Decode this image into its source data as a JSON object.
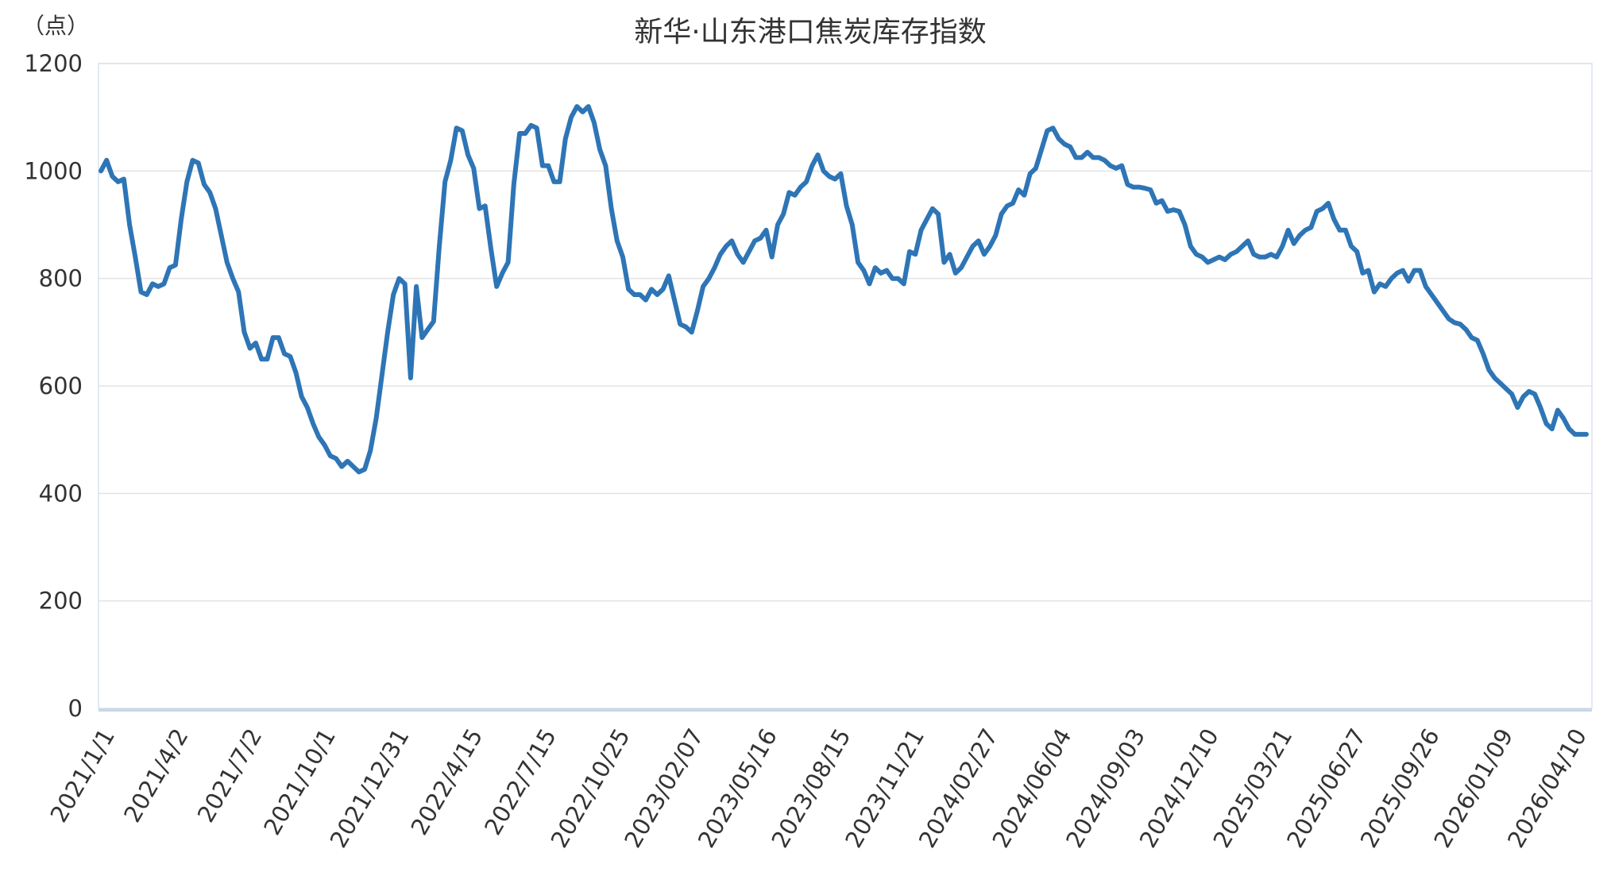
{
  "chart_data": {
    "type": "line",
    "title": "新华·山东港口焦炭库存指数",
    "unit_label": "（点）",
    "ylim": [
      0,
      1200
    ],
    "y_ticks": [
      0,
      200,
      400,
      600,
      800,
      1000,
      1200
    ],
    "x_tick_labels": [
      "2021/1/1",
      "2021/4/2",
      "2021/7/2",
      "2021/10/1",
      "2021/12/31",
      "2022/4/15",
      "2022/7/15",
      "2022/10/25",
      "2023/02/07",
      "2023/05/16",
      "2023/08/15",
      "2023/11/21",
      "2024/02/27",
      "2024/06/04",
      "2024/09/03",
      "2024/12/10",
      "2025/03/21",
      "2025/06/27",
      "2025/09/26",
      "2026/01/09",
      "2026/04/10"
    ],
    "grid": true,
    "legend": "none",
    "series": [
      {
        "color": "#2e75b6",
        "values": [
          1000,
          1020,
          990,
          980,
          985,
          900,
          840,
          775,
          770,
          790,
          785,
          790,
          820,
          825,
          910,
          980,
          1020,
          1015,
          975,
          960,
          930,
          880,
          830,
          800,
          775,
          700,
          670,
          680,
          650,
          650,
          690,
          690,
          660,
          655,
          625,
          580,
          560,
          530,
          505,
          490,
          470,
          465,
          450,
          460,
          450,
          440,
          445,
          480,
          540,
          620,
          700,
          770,
          800,
          790,
          615,
          785,
          690,
          705,
          720,
          860,
          980,
          1020,
          1080,
          1075,
          1030,
          1005,
          930,
          935,
          855,
          785,
          810,
          830,
          975,
          1070,
          1070,
          1085,
          1080,
          1010,
          1010,
          980,
          980,
          1060,
          1100,
          1120,
          1110,
          1120,
          1090,
          1040,
          1010,
          930,
          870,
          840,
          780,
          770,
          770,
          760,
          780,
          770,
          780,
          805,
          760,
          715,
          710,
          700,
          740,
          785,
          800,
          820,
          845,
          860,
          870,
          845,
          830,
          850,
          870,
          875,
          890,
          840,
          900,
          920,
          960,
          955,
          970,
          980,
          1010,
          1030,
          1000,
          990,
          985,
          995,
          935,
          900,
          830,
          815,
          790,
          820,
          810,
          815,
          800,
          800,
          790,
          850,
          845,
          890,
          910,
          930,
          920,
          830,
          845,
          810,
          820,
          840,
          860,
          870,
          845,
          860,
          880,
          920,
          935,
          940,
          965,
          955,
          995,
          1005,
          1040,
          1075,
          1080,
          1060,
          1050,
          1045,
          1025,
          1025,
          1035,
          1025,
          1025,
          1020,
          1010,
          1005,
          1010,
          975,
          970,
          970,
          968,
          965,
          940,
          945,
          925,
          928,
          925,
          900,
          860,
          845,
          840,
          830,
          835,
          840,
          835,
          845,
          850,
          860,
          870,
          845,
          840,
          840,
          845,
          840,
          860,
          890,
          865,
          880,
          890,
          895,
          925,
          930,
          940,
          910,
          890,
          890,
          860,
          850,
          810,
          815,
          775,
          790,
          785,
          800,
          810,
          815,
          795,
          815,
          815,
          785,
          770,
          755,
          740,
          725,
          718,
          715,
          705,
          690,
          685,
          660,
          630,
          615,
          605,
          595,
          585,
          560,
          580,
          590,
          585,
          560,
          530,
          520,
          555,
          540,
          520,
          510,
          510,
          510
        ]
      }
    ]
  }
}
